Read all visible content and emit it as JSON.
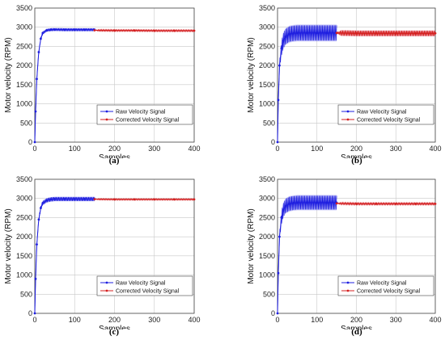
{
  "chart_data": [
    {
      "type": "line",
      "panel": "a",
      "caption": "(a)",
      "xlabel": "Samples",
      "ylabel": "Motor velocity (RPM)",
      "xlim": [
        0,
        400
      ],
      "ylim": [
        0,
        3500
      ],
      "xticks": [
        "0",
        "100",
        "200",
        "300",
        "400"
      ],
      "yticks": [
        "0",
        "500",
        "1000",
        "1500",
        "2000",
        "2500",
        "3000",
        "3500"
      ],
      "grid": true,
      "legend_position": "bottom-right",
      "series": [
        {
          "name": "Raw Velocity Signal",
          "color": "#1f1fe0",
          "noise_band_rpm": 40,
          "x": [
            0,
            2,
            5,
            10,
            15,
            20,
            30,
            40,
            50,
            75,
            100,
            125,
            150
          ],
          "y": [
            0,
            800,
            1650,
            2350,
            2700,
            2850,
            2920,
            2935,
            2940,
            2935,
            2935,
            2935,
            2935
          ]
        },
        {
          "name": "Corrected Velocity Signal",
          "color": "#d42020",
          "noise_band_rpm": 25,
          "x": [
            150,
            200,
            250,
            300,
            350,
            400
          ],
          "y": [
            2920,
            2915,
            2915,
            2910,
            2910,
            2910
          ]
        }
      ]
    },
    {
      "type": "line",
      "panel": "b",
      "caption": "(b)",
      "xlabel": "Samples",
      "ylabel": "Motor velocity (RPM)",
      "xlim": [
        0,
        400
      ],
      "ylim": [
        0,
        3500
      ],
      "xticks": [
        "0",
        "100",
        "200",
        "300",
        "400"
      ],
      "yticks": [
        "0",
        "500",
        "1000",
        "1500",
        "2000",
        "2500",
        "3000",
        "3500"
      ],
      "grid": true,
      "legend_position": "bottom-right",
      "series": [
        {
          "name": "Raw Velocity Signal",
          "color": "#1f1fe0",
          "noise_band_rpm": 220,
          "x": [
            0,
            2,
            5,
            10,
            15,
            20,
            30,
            40,
            50,
            75,
            100,
            125,
            150
          ],
          "y": [
            0,
            1100,
            2000,
            2450,
            2650,
            2750,
            2820,
            2840,
            2850,
            2850,
            2850,
            2850,
            2850
          ]
        },
        {
          "name": "Corrected Velocity Signal",
          "color": "#d42020",
          "noise_band_rpm": 80,
          "x": [
            150,
            200,
            250,
            300,
            350,
            400
          ],
          "y": [
            2850,
            2840,
            2840,
            2840,
            2840,
            2840
          ]
        }
      ]
    },
    {
      "type": "line",
      "panel": "c",
      "caption": "(c)",
      "xlabel": "Samples",
      "ylabel": "Motor velocity (RPM)",
      "xlim": [
        0,
        400
      ],
      "ylim": [
        0,
        3500
      ],
      "xticks": [
        "0",
        "100",
        "200",
        "300",
        "400"
      ],
      "yticks": [
        "0",
        "500",
        "1000",
        "1500",
        "2000",
        "2500",
        "3000",
        "3500"
      ],
      "grid": true,
      "legend_position": "bottom-right",
      "series": [
        {
          "name": "Raw Velocity Signal",
          "color": "#1f1fe0",
          "noise_band_rpm": 60,
          "x": [
            0,
            2,
            5,
            10,
            15,
            20,
            30,
            40,
            50,
            75,
            100,
            125,
            150
          ],
          "y": [
            0,
            900,
            1800,
            2450,
            2750,
            2880,
            2950,
            2975,
            2985,
            2985,
            2985,
            2985,
            2985
          ]
        },
        {
          "name": "Corrected Velocity Signal",
          "color": "#d42020",
          "noise_band_rpm": 20,
          "x": [
            150,
            200,
            250,
            300,
            350,
            400
          ],
          "y": [
            2980,
            2975,
            2975,
            2975,
            2975,
            2975
          ]
        }
      ]
    },
    {
      "type": "line",
      "panel": "d",
      "caption": "(d)",
      "xlabel": "Samples",
      "ylabel": "Motor velocity (RPM)",
      "xlim": [
        0,
        400
      ],
      "ylim": [
        0,
        3500
      ],
      "xticks": [
        "0",
        "100",
        "200",
        "300",
        "400"
      ],
      "yticks": [
        "0",
        "500",
        "1000",
        "1500",
        "2000",
        "2500",
        "3000",
        "3500"
      ],
      "grid": true,
      "legend_position": "bottom-right",
      "series": [
        {
          "name": "Raw Velocity Signal",
          "color": "#1f1fe0",
          "noise_band_rpm": 200,
          "x": [
            0,
            2,
            5,
            10,
            15,
            20,
            30,
            40,
            50,
            75,
            100,
            125,
            150
          ],
          "y": [
            0,
            1050,
            2000,
            2500,
            2700,
            2800,
            2860,
            2880,
            2890,
            2890,
            2890,
            2890,
            2890
          ]
        },
        {
          "name": "Corrected Velocity Signal",
          "color": "#d42020",
          "noise_band_rpm": 30,
          "x": [
            150,
            200,
            250,
            300,
            350,
            400
          ],
          "y": [
            2870,
            2860,
            2860,
            2860,
            2860,
            2860
          ]
        }
      ]
    }
  ]
}
